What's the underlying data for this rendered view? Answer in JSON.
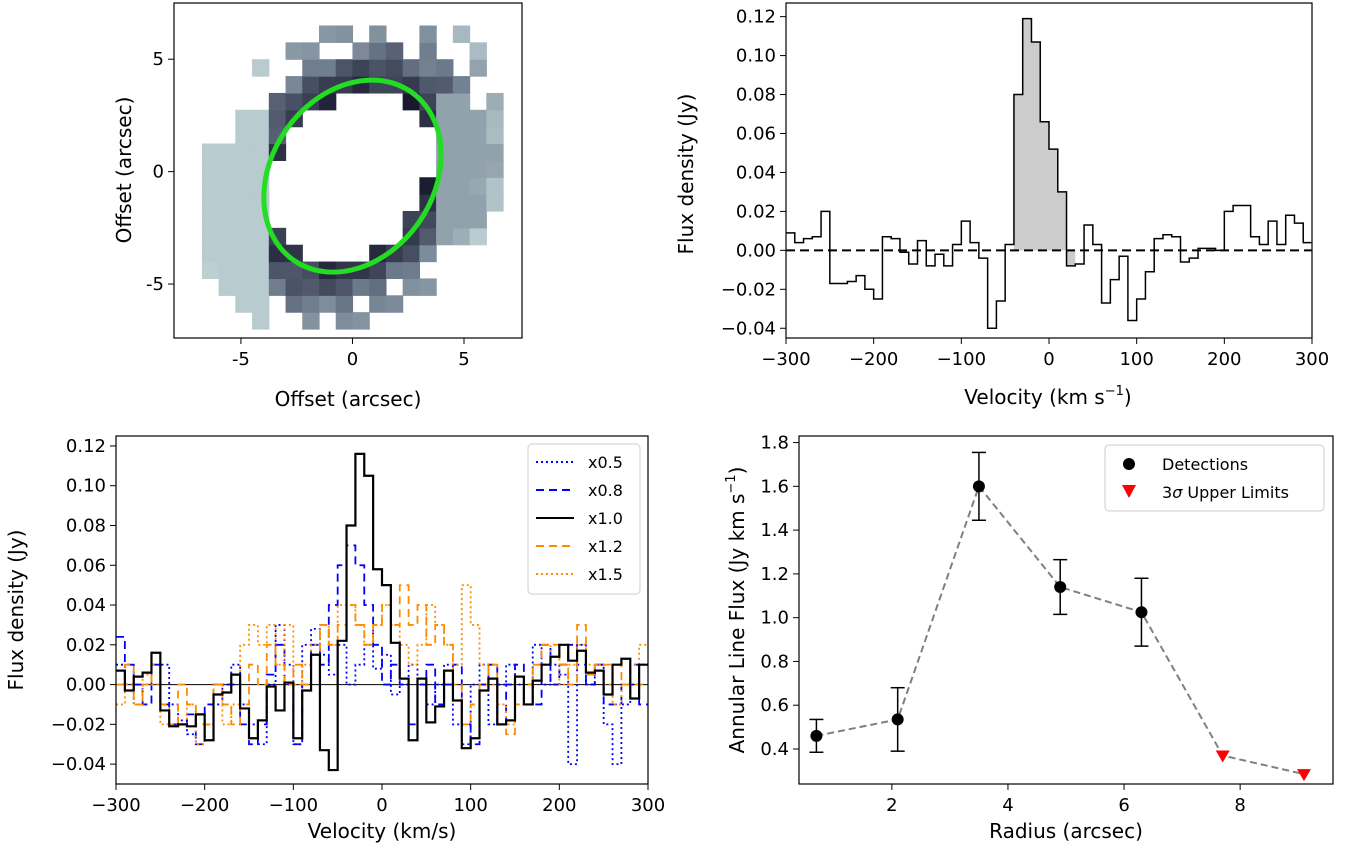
{
  "chart_data": [
    {
      "type": "heatmap",
      "panel": "top-left",
      "xlabel": "Offset (arcsec)",
      "ylabel": "Offset (arcsec)",
      "xlim": [
        -8,
        7.6
      ],
      "ylim": [
        -7.4,
        7.5
      ],
      "xticks": [
        -5,
        0,
        5
      ],
      "yticks": [
        -5,
        0,
        5
      ],
      "tick_labels": [
        "-5",
        "0",
        "5"
      ],
      "ellipse": {
        "center": [
          0,
          -0.2
        ],
        "semi_major": 4.6,
        "semi_minor": 3.6,
        "angle_deg": 55,
        "color": "#22dd22"
      },
      "colors": {
        "low": "#cfe3e2",
        "mid": "#6f7d8e",
        "high": "#14142a"
      }
    },
    {
      "type": "line",
      "panel": "top-right",
      "xlabel": "Velocity (km s",
      "xlabel_sup": "−1",
      "xlabel_end": ")",
      "ylabel": "Flux density (Jy)",
      "xlim": [
        -300,
        300
      ],
      "ylim": [
        -0.045,
        0.127
      ],
      "xticks": [
        -300,
        -200,
        -100,
        0,
        100,
        200,
        300
      ],
      "xtick_labels": [
        "−300",
        "−200",
        "−100",
        "0",
        "100",
        "200",
        "300"
      ],
      "yticks": [
        -0.04,
        -0.02,
        0.0,
        0.02,
        0.04,
        0.06,
        0.08,
        0.1,
        0.12
      ],
      "ytick_labels": [
        "−0.04",
        "−0.02",
        "0.00",
        "0.02",
        "0.04",
        "0.06",
        "0.08",
        "0.10",
        "0.12"
      ],
      "step_edges": [
        -300,
        -290,
        -280,
        -270,
        -260,
        -250,
        -240,
        -230,
        -220,
        -210,
        -200,
        -190,
        -180,
        -170,
        -160,
        -150,
        -140,
        -130,
        -120,
        -110,
        -100,
        -90,
        -80,
        -70,
        -60,
        -50,
        -40,
        -30,
        -20,
        -10,
        0,
        10,
        20,
        30,
        40,
        50,
        60,
        70,
        80,
        90,
        100,
        110,
        120,
        130,
        140,
        150,
        160,
        170,
        180,
        190,
        200,
        210,
        220,
        230,
        240,
        250,
        260,
        270,
        280,
        290,
        300
      ],
      "values": [
        0.009,
        0.004,
        0.006,
        0.007,
        0.02,
        -0.017,
        -0.017,
        -0.016,
        -0.013,
        -0.02,
        -0.025,
        0.007,
        0.006,
        -0.001,
        -0.007,
        0.005,
        -0.008,
        -0.002,
        -0.008,
        0.003,
        0.015,
        0.004,
        -0.004,
        -0.04,
        -0.026,
        0.003,
        0.08,
        0.119,
        0.107,
        0.066,
        0.052,
        0.03,
        -0.008,
        -0.007,
        0.013,
        0.003,
        -0.027,
        -0.015,
        -0.003,
        -0.036,
        -0.025,
        -0.011,
        0.006,
        0.008,
        0.007,
        -0.006,
        -0.004,
        0.001,
        0.001,
        0.0,
        0.02,
        0.023,
        0.023,
        0.007,
        0.003,
        0.015,
        0.003,
        0.018,
        0.014,
        0.004
      ],
      "shaded_range": [
        -40,
        30
      ],
      "shade_color": "#cccccc"
    },
    {
      "type": "line",
      "panel": "bottom-left",
      "xlabel": "Velocity (km/s)",
      "ylabel": "Flux density (Jy)",
      "xlim": [
        -300,
        300
      ],
      "ylim": [
        -0.05,
        0.125
      ],
      "xticks": [
        -300,
        -200,
        -100,
        0,
        100,
        200,
        300
      ],
      "xtick_labels": [
        "−300",
        "−200",
        "−100",
        "0",
        "100",
        "200",
        "300"
      ],
      "yticks": [
        -0.04,
        -0.02,
        0.0,
        0.02,
        0.04,
        0.06,
        0.08,
        0.1,
        0.12
      ],
      "ytick_labels": [
        "−0.04",
        "−0.02",
        "0.00",
        "0.02",
        "0.04",
        "0.06",
        "0.08",
        "0.10",
        "0.12"
      ],
      "legend_position": "top-right",
      "series": [
        {
          "name": "x0.5",
          "color": "#0000ff",
          "dash": "2,3",
          "values": [
            0.01,
            0.0,
            -0.01,
            0.0,
            0.0,
            0.01,
            -0.01,
            -0.018,
            -0.025,
            -0.03,
            -0.02,
            -0.01,
            0.0,
            0.01,
            -0.01,
            -0.02,
            -0.03,
            0.0,
            0.03,
            0.01,
            -0.03,
            0.02,
            0.028,
            0.015,
            0.005,
            0.02,
            0.0,
            0.01,
            0.02,
            0.008,
            0.015,
            -0.005,
            0.0,
            0.01,
            0.0,
            -0.01,
            0.0,
            0.01,
            -0.02,
            -0.03,
            0.0,
            0.01,
            -0.02,
            0.0,
            0.01,
            0.0,
            -0.01,
            0.02,
            0.0,
            0.01,
            0.005,
            -0.04,
            0.02,
            0.0,
            0.01,
            -0.02,
            -0.04,
            -0.01,
            0.0,
            0.01
          ]
        },
        {
          "name": "x0.8",
          "color": "#0000ff",
          "dash": "8,5",
          "values": [
            0.024,
            0.01,
            0.0,
            -0.01,
            0.01,
            -0.01,
            -0.02,
            -0.02,
            -0.015,
            -0.03,
            -0.01,
            0.0,
            0.0,
            0.0,
            -0.02,
            -0.03,
            -0.02,
            0.005,
            0.02,
            0.0,
            -0.03,
            0.0,
            0.02,
            0.01,
            0.04,
            0.06,
            0.07,
            0.06,
            0.04,
            0.02,
            0.0,
            0.01,
            0.0,
            -0.02,
            0.0,
            0.01,
            -0.01,
            0.0,
            0.01,
            -0.02,
            -0.03,
            0.0,
            0.01,
            -0.02,
            0.0,
            0.01,
            0.0,
            -0.01,
            0.02,
            0.0,
            0.01,
            0.02,
            0.01,
            0.0,
            0.01,
            -0.01,
            -0.01,
            0.0,
            0.01,
            -0.01
          ]
        },
        {
          "name": "x1.0",
          "color": "#000000",
          "dash": "",
          "values": [
            0.007,
            -0.003,
            0.004,
            0.006,
            0.016,
            -0.013,
            -0.021,
            -0.02,
            -0.021,
            -0.015,
            -0.028,
            -0.005,
            -0.004,
            0.005,
            -0.012,
            -0.027,
            -0.018,
            -0.001,
            -0.013,
            0.001,
            -0.027,
            -0.003,
            0.015,
            -0.033,
            -0.043,
            0.022,
            0.08,
            0.116,
            0.105,
            0.058,
            0.05,
            0.021,
            0.003,
            -0.028,
            0.003,
            -0.019,
            -0.011,
            0.007,
            -0.008,
            -0.032,
            -0.027,
            -0.003,
            0.003,
            -0.02,
            -0.018,
            0.004,
            -0.01,
            0.002,
            0.01,
            0.014,
            0.02,
            0.012,
            0.017,
            0.006,
            0.007,
            -0.005,
            0.01,
            0.013,
            -0.007,
            0.01
          ]
        },
        {
          "name": "x1.2",
          "color": "#ff8c00",
          "dash": "8,5",
          "values": [
            0.0,
            0.01,
            -0.01,
            0.0,
            0.01,
            -0.01,
            -0.02,
            0.0,
            -0.01,
            -0.02,
            -0.02,
            0.0,
            -0.01,
            -0.02,
            -0.01,
            0.01,
            0.0,
            0.02,
            0.01,
            0.0,
            0.01,
            0.0,
            0.015,
            0.03,
            0.02,
            0.03,
            0.04,
            0.03,
            0.02,
            0.03,
            0.04,
            0.03,
            0.05,
            0.03,
            0.04,
            0.02,
            0.03,
            0.02,
            0.0,
            -0.02,
            -0.01,
            0.0,
            0.01,
            -0.02,
            -0.025,
            -0.01,
            0.0,
            0.01,
            0.02,
            0.02,
            0.01,
            0.0,
            0.03,
            0.005,
            0.01,
            0.01,
            0.01,
            0.0,
            0.0,
            0.0
          ]
        },
        {
          "name": "x1.5",
          "color": "#ff8c00",
          "dash": "2,3",
          "values": [
            -0.01,
            0.0,
            -0.01,
            0.005,
            0.0,
            -0.02,
            -0.02,
            -0.02,
            -0.01,
            -0.03,
            -0.02,
            0.0,
            -0.02,
            -0.01,
            0.02,
            0.03,
            0.02,
            0.03,
            0.01,
            0.03,
            0.0,
            0.01,
            0.02,
            0.03,
            0.02,
            0.04,
            0.04,
            0.03,
            0.02,
            0.03,
            0.04,
            0.03,
            0.02,
            0.01,
            0.02,
            0.04,
            0.03,
            0.02,
            0.01,
            0.05,
            0.03,
            0.01,
            0.0,
            -0.01,
            -0.02,
            -0.01,
            0.0,
            0.01,
            0.01,
            0.02,
            0.0,
            0.01,
            0.02,
            0.01,
            0.01,
            0.0,
            -0.01,
            0.0,
            0.01,
            0.02
          ]
        }
      ]
    },
    {
      "type": "scatter",
      "panel": "bottom-right",
      "xlabel": "Radius (arcsec)",
      "ylabel": "Annular Line Flux (Jy km s",
      "ylabel_sup": "−1",
      "ylabel_end": ")",
      "xlim": [
        0.4,
        9.6
      ],
      "ylim": [
        0.24,
        1.83
      ],
      "xticks": [
        2,
        4,
        6,
        8
      ],
      "xtick_labels": [
        "2",
        "4",
        "6",
        "8"
      ],
      "yticks": [
        0.4,
        0.6,
        0.8,
        1.0,
        1.2,
        1.4,
        1.6,
        1.8
      ],
      "ytick_labels": [
        "0.4",
        "0.6",
        "0.8",
        "1.0",
        "1.2",
        "1.4",
        "1.6",
        "1.8"
      ],
      "legend_position": "top-right",
      "detections": {
        "name": "Detections",
        "x": [
          0.7,
          2.1,
          3.5,
          4.9,
          6.3
        ],
        "y": [
          0.46,
          0.535,
          1.6,
          1.14,
          1.025
        ],
        "err": [
          0.075,
          0.145,
          0.155,
          0.125,
          0.155
        ],
        "color": "#000000"
      },
      "upper_limits": {
        "name_prefix": "3",
        "name_symbol": "σ",
        "name_suffix": " Upper Limits",
        "x": [
          7.7,
          9.1
        ],
        "y": [
          0.37,
          0.285
        ],
        "color": "#ff0000"
      },
      "line_color": "#808080"
    }
  ]
}
